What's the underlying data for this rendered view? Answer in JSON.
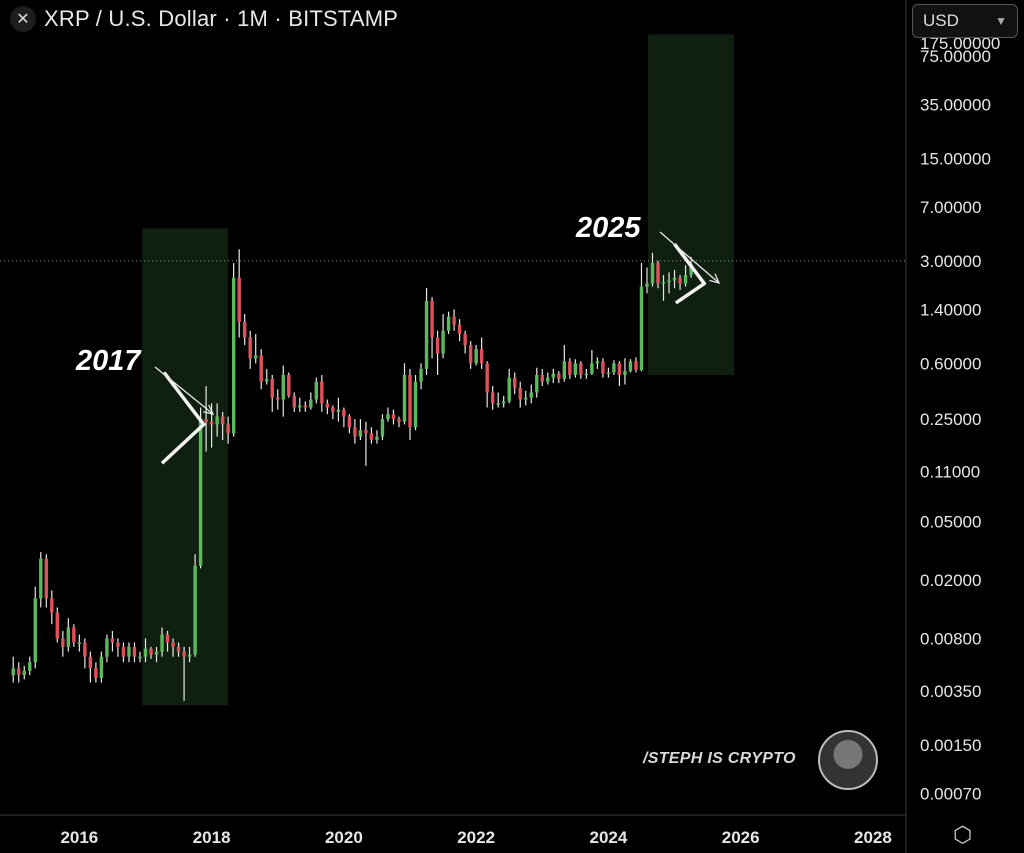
{
  "header": {
    "close_icon": "x-icon",
    "title": "XRP / U.S. Dollar · 1M · BITSTAMP"
  },
  "currency_selector": {
    "value": "USD",
    "icon": "chevron-down-icon"
  },
  "settings_icon": "hexagon-gear-icon",
  "watermark": {
    "text": "/STEPH IS CRYPTO",
    "avatar": "avatar"
  },
  "colors": {
    "up": "#5cb85c",
    "down": "#e0505a",
    "highlight": "#0f1f10",
    "axis_text": "#e6e6e6"
  },
  "chart_data": {
    "type": "candlestick",
    "scale": "log",
    "ylim": [
      0.0005,
      180
    ],
    "xlim": [
      2014.8,
      2028.5
    ],
    "y_ticks": [
      "75.00000",
      "35.00000",
      "15.00000",
      "7.00000",
      "3.00000",
      "1.40000",
      "0.60000",
      "0.25000",
      "0.11000",
      "0.05000",
      "0.02000",
      "0.00800",
      "0.00350",
      "0.00150",
      "0.00070"
    ],
    "x_ticks": [
      "2016",
      "2018",
      "2020",
      "2022",
      "2024",
      "2026",
      "2028"
    ],
    "annotations": [
      {
        "label": "2017",
        "x_start": 2016.95,
        "x_end": 2018.25,
        "y_low": 0.0028,
        "y_high": 5.0
      },
      {
        "label": "2025",
        "x_start": 2024.6,
        "x_end": 2025.9,
        "y_low": 0.5,
        "y_high": 105
      }
    ],
    "reference_line": 3.0,
    "candles": [
      [
        0.0045,
        0.005,
        0.006,
        0.004
      ],
      [
        0.005,
        0.0045,
        0.0055,
        0.004
      ],
      [
        0.0045,
        0.0048,
        0.0052,
        0.0042
      ],
      [
        0.0048,
        0.0055,
        0.006,
        0.0045
      ],
      [
        0.0055,
        0.015,
        0.018,
        0.005
      ],
      [
        0.015,
        0.028,
        0.031,
        0.013
      ],
      [
        0.028,
        0.015,
        0.03,
        0.013
      ],
      [
        0.015,
        0.012,
        0.017,
        0.01
      ],
      [
        0.012,
        0.008,
        0.013,
        0.0075
      ],
      [
        0.008,
        0.007,
        0.009,
        0.006
      ],
      [
        0.007,
        0.0095,
        0.011,
        0.0065
      ],
      [
        0.0095,
        0.0075,
        0.01,
        0.007
      ],
      [
        0.0075,
        0.0075,
        0.0085,
        0.0065
      ],
      [
        0.0075,
        0.006,
        0.008,
        0.005
      ],
      [
        0.006,
        0.005,
        0.0065,
        0.004
      ],
      [
        0.005,
        0.0043,
        0.0055,
        0.004
      ],
      [
        0.0043,
        0.006,
        0.0065,
        0.004
      ],
      [
        0.006,
        0.008,
        0.0085,
        0.0055
      ],
      [
        0.008,
        0.0075,
        0.009,
        0.0065
      ],
      [
        0.0075,
        0.007,
        0.008,
        0.006
      ],
      [
        0.007,
        0.006,
        0.0075,
        0.0055
      ],
      [
        0.006,
        0.007,
        0.0075,
        0.0055
      ],
      [
        0.007,
        0.006,
        0.0075,
        0.0055
      ],
      [
        0.006,
        0.006,
        0.0065,
        0.0055
      ],
      [
        0.006,
        0.0068,
        0.008,
        0.0055
      ],
      [
        0.0068,
        0.0062,
        0.007,
        0.0058
      ],
      [
        0.0062,
        0.0065,
        0.007,
        0.0055
      ],
      [
        0.0065,
        0.0085,
        0.0095,
        0.006
      ],
      [
        0.0085,
        0.0075,
        0.009,
        0.0065
      ],
      [
        0.0075,
        0.007,
        0.008,
        0.006
      ],
      [
        0.007,
        0.0065,
        0.0075,
        0.006
      ],
      [
        0.0065,
        0.006,
        0.007,
        0.003
      ],
      [
        0.006,
        0.0062,
        0.007,
        0.0055
      ],
      [
        0.0062,
        0.025,
        0.03,
        0.006
      ],
      [
        0.025,
        0.25,
        0.3,
        0.024
      ],
      [
        0.25,
        0.24,
        0.42,
        0.15
      ],
      [
        0.24,
        0.23,
        0.32,
        0.16
      ],
      [
        0.23,
        0.26,
        0.32,
        0.19
      ],
      [
        0.26,
        0.23,
        0.28,
        0.18
      ],
      [
        0.23,
        0.2,
        0.26,
        0.17
      ],
      [
        0.2,
        2.3,
        2.9,
        0.19
      ],
      [
        2.3,
        1.15,
        3.6,
        0.9
      ],
      [
        1.15,
        0.9,
        1.3,
        0.8
      ],
      [
        0.9,
        0.65,
        1.0,
        0.55
      ],
      [
        0.65,
        0.68,
        0.95,
        0.6
      ],
      [
        0.68,
        0.45,
        0.75,
        0.4
      ],
      [
        0.45,
        0.47,
        0.55,
        0.43
      ],
      [
        0.47,
        0.35,
        0.5,
        0.28
      ],
      [
        0.35,
        0.34,
        0.4,
        0.29
      ],
      [
        0.34,
        0.5,
        0.58,
        0.26
      ],
      [
        0.5,
        0.36,
        0.52,
        0.35
      ],
      [
        0.36,
        0.3,
        0.38,
        0.28
      ],
      [
        0.3,
        0.31,
        0.35,
        0.28
      ],
      [
        0.31,
        0.3,
        0.33,
        0.28
      ],
      [
        0.3,
        0.34,
        0.38,
        0.29
      ],
      [
        0.34,
        0.45,
        0.48,
        0.32
      ],
      [
        0.45,
        0.32,
        0.5,
        0.28
      ],
      [
        0.32,
        0.3,
        0.34,
        0.27
      ],
      [
        0.3,
        0.28,
        0.31,
        0.25
      ],
      [
        0.28,
        0.29,
        0.35,
        0.24
      ],
      [
        0.29,
        0.26,
        0.3,
        0.22
      ],
      [
        0.26,
        0.22,
        0.27,
        0.2
      ],
      [
        0.22,
        0.19,
        0.25,
        0.17
      ],
      [
        0.19,
        0.21,
        0.25,
        0.18
      ],
      [
        0.21,
        0.2,
        0.24,
        0.12
      ],
      [
        0.2,
        0.18,
        0.22,
        0.17
      ],
      [
        0.18,
        0.19,
        0.21,
        0.17
      ],
      [
        0.19,
        0.25,
        0.27,
        0.18
      ],
      [
        0.25,
        0.27,
        0.3,
        0.24
      ],
      [
        0.27,
        0.25,
        0.29,
        0.23
      ],
      [
        0.25,
        0.24,
        0.26,
        0.22
      ],
      [
        0.24,
        0.5,
        0.6,
        0.23
      ],
      [
        0.5,
        0.22,
        0.55,
        0.18
      ],
      [
        0.22,
        0.45,
        0.5,
        0.21
      ],
      [
        0.45,
        0.55,
        0.6,
        0.4
      ],
      [
        0.55,
        1.6,
        1.96,
        0.5
      ],
      [
        1.6,
        0.9,
        1.7,
        0.65
      ],
      [
        0.9,
        0.7,
        1.0,
        0.5
      ],
      [
        0.7,
        1.0,
        1.3,
        0.65
      ],
      [
        1.0,
        1.25,
        1.35,
        0.95
      ],
      [
        1.25,
        1.1,
        1.4,
        1.0
      ],
      [
        1.1,
        0.95,
        1.2,
        0.85
      ],
      [
        0.95,
        0.8,
        1.0,
        0.7
      ],
      [
        0.8,
        0.6,
        0.85,
        0.55
      ],
      [
        0.6,
        0.75,
        0.8,
        0.58
      ],
      [
        0.75,
        0.6,
        0.9,
        0.55
      ],
      [
        0.6,
        0.38,
        0.62,
        0.3
      ],
      [
        0.38,
        0.32,
        0.42,
        0.29
      ],
      [
        0.32,
        0.32,
        0.38,
        0.3
      ],
      [
        0.32,
        0.33,
        0.36,
        0.3
      ],
      [
        0.33,
        0.48,
        0.55,
        0.32
      ],
      [
        0.48,
        0.41,
        0.52,
        0.37
      ],
      [
        0.41,
        0.34,
        0.45,
        0.3
      ],
      [
        0.34,
        0.35,
        0.39,
        0.31
      ],
      [
        0.35,
        0.38,
        0.43,
        0.32
      ],
      [
        0.38,
        0.5,
        0.56,
        0.35
      ],
      [
        0.5,
        0.45,
        0.55,
        0.42
      ],
      [
        0.45,
        0.48,
        0.52,
        0.43
      ],
      [
        0.48,
        0.51,
        0.55,
        0.44
      ],
      [
        0.51,
        0.47,
        0.53,
        0.44
      ],
      [
        0.47,
        0.62,
        0.8,
        0.45
      ],
      [
        0.62,
        0.5,
        0.65,
        0.47
      ],
      [
        0.5,
        0.6,
        0.64,
        0.48
      ],
      [
        0.6,
        0.5,
        0.62,
        0.47
      ],
      [
        0.5,
        0.51,
        0.55,
        0.47
      ],
      [
        0.51,
        0.6,
        0.74,
        0.5
      ],
      [
        0.6,
        0.62,
        0.66,
        0.55
      ],
      [
        0.62,
        0.51,
        0.65,
        0.48
      ],
      [
        0.51,
        0.52,
        0.56,
        0.48
      ],
      [
        0.52,
        0.6,
        0.63,
        0.5
      ],
      [
        0.6,
        0.5,
        0.62,
        0.42
      ],
      [
        0.5,
        0.53,
        0.65,
        0.43
      ],
      [
        0.53,
        0.62,
        0.64,
        0.52
      ],
      [
        0.62,
        0.54,
        0.66,
        0.52
      ],
      [
        0.54,
        2.0,
        2.9,
        0.53
      ],
      [
        2.0,
        2.1,
        2.7,
        1.8
      ],
      [
        2.1,
        2.9,
        3.4,
        2.0
      ],
      [
        2.9,
        2.1,
        3.0,
        1.95
      ],
      [
        2.1,
        2.15,
        2.4,
        1.6
      ],
      [
        2.15,
        2.2,
        2.5,
        1.8
      ],
      [
        2.2,
        2.3,
        2.6,
        1.95
      ],
      [
        2.3,
        2.1,
        2.4,
        1.9
      ],
      [
        2.1,
        2.4,
        2.8,
        2.0
      ],
      [
        2.4,
        2.85,
        3.2,
        2.3
      ]
    ]
  }
}
